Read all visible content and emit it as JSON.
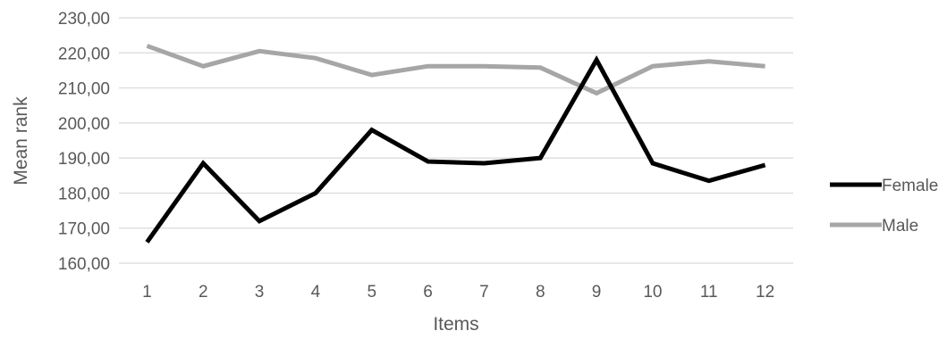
{
  "chart_data": {
    "type": "line",
    "title": "",
    "xlabel": "Items",
    "ylabel": "Mean rank",
    "x": [
      1,
      2,
      3,
      4,
      5,
      6,
      7,
      8,
      9,
      10,
      11,
      12
    ],
    "x_tick_labels": [
      "1",
      "2",
      "3",
      "4",
      "5",
      "6",
      "7",
      "8",
      "9",
      "10",
      "11",
      "12"
    ],
    "y_ticks": [
      160,
      170,
      180,
      190,
      200,
      210,
      220,
      230
    ],
    "y_tick_labels": [
      "160,00",
      "170,00",
      "180,00",
      "190,00",
      "200,00",
      "210,00",
      "220,00",
      "230,00"
    ],
    "ylim": [
      160,
      230
    ],
    "grid": true,
    "legend_position": "right",
    "series": [
      {
        "name": "Female",
        "color": "#000000",
        "values": [
          166.0,
          188.5,
          172.0,
          180.0,
          198.0,
          189.0,
          188.5,
          190.0,
          218.0,
          188.5,
          183.5,
          188.0
        ]
      },
      {
        "name": "Male",
        "color": "#a6a6a6",
        "values": [
          222.0,
          216.2,
          220.5,
          218.5,
          213.7,
          216.2,
          216.2,
          215.8,
          208.5,
          216.2,
          217.6,
          216.2
        ]
      }
    ]
  }
}
